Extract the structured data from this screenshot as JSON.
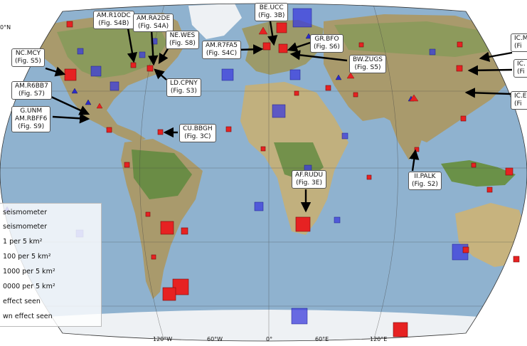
{
  "map": {
    "axis_labels": {
      "lat_top": "0°N",
      "lon_ticks": [
        "120°W",
        "60°W",
        "0°",
        "60°E",
        "120°E"
      ]
    },
    "colors": {
      "ocean": "#8fb2cf",
      "land": "#b2a57a",
      "forest": "#7e9a55",
      "ice": "#eef1f4",
      "detected": "#e62222",
      "not_detected": "#3b3bdc",
      "seismometer_marker": "#2b2bc9"
    },
    "callouts": [
      {
        "id": "am-r10dc",
        "lines": [
          "AM.R10DC",
          "(Fig. S4B)"
        ]
      },
      {
        "id": "am-ra2de",
        "lines": [
          "AM.RA2DE",
          "(Fig. S4A)"
        ]
      },
      {
        "id": "ne-wes",
        "lines": [
          "NE.WES",
          "(Fig. S8)"
        ]
      },
      {
        "id": "nc-mcy",
        "lines": [
          "NC.MCY",
          "(Fig. S5)"
        ]
      },
      {
        "id": "am-r7fa5",
        "lines": [
          "AM.R7FA5",
          "(Fig. S4C)"
        ]
      },
      {
        "id": "be-ucc",
        "lines": [
          "BE.UCC",
          "(Fig. 3B)"
        ]
      },
      {
        "id": "gr-bfo",
        "lines": [
          "GR.BFO",
          "(Fig. S6)"
        ]
      },
      {
        "id": "bw-zugs",
        "lines": [
          "BW.ZUGS",
          "(Fig. S5)"
        ]
      },
      {
        "id": "ld-cpny",
        "lines": [
          "LD.CPNY",
          "(Fig. S3)"
        ]
      },
      {
        "id": "am-r6bb7",
        "lines": [
          "AM.R6BB7",
          "(Fig. S7)"
        ]
      },
      {
        "id": "g-unm",
        "lines": [
          "G.UNM",
          "AM.RBFF6",
          "(Fig. S9)"
        ]
      },
      {
        "id": "cu-bbgh",
        "lines": [
          "CU.BBGH",
          "(Fig. 3C)"
        ]
      },
      {
        "id": "af-rudu",
        "lines": [
          "AF.RUDU",
          "(Fig. 3E)"
        ]
      },
      {
        "id": "ii-palk",
        "lines": [
          "II.PALK",
          "(Fig. S2)"
        ]
      },
      {
        "id": "ic-m",
        "lines": [
          "IC.M",
          "(Fi"
        ]
      },
      {
        "id": "ic-2",
        "lines": [
          "IC.",
          "(Fi"
        ]
      },
      {
        "id": "ic-e",
        "lines": [
          "IC.E",
          "(Fi"
        ]
      }
    ],
    "legend": {
      "rows": [
        {
          "label": "seismometer",
          "symbol": "triangle-blue"
        },
        {
          "label": " seismometer",
          "symbol": "none"
        },
        {
          "label": "1 per 5 km²",
          "symbol": "none"
        },
        {
          "label": "100 per 5 km²",
          "symbol": "none"
        },
        {
          "label": "1000 per 5 km²",
          "symbol": "none"
        },
        {
          "label": "0000 per 5 km²",
          "symbol": "none"
        },
        {
          "label": "effect seen",
          "symbol": "none"
        },
        {
          "label": "wn effect seen",
          "symbol": "none"
        }
      ]
    }
  }
}
